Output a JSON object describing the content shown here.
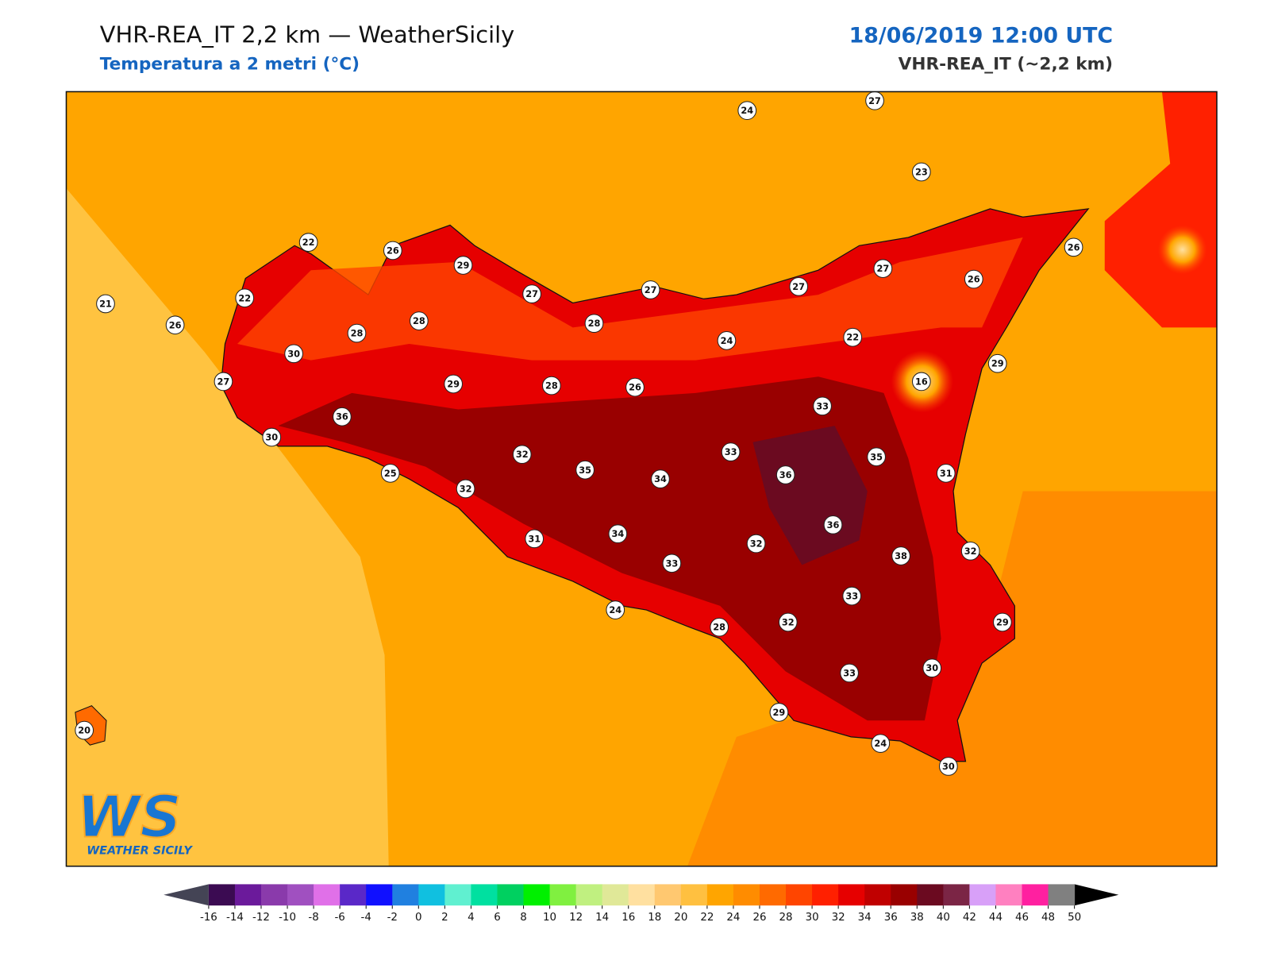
{
  "header": {
    "title": "VHR-REA_IT 2,2 km — WeatherSicily",
    "subtitle": "Temperatura a 2 metri (°C)",
    "date": "18/06/2019 12:00 UTC",
    "model": "VHR-REA_IT (~2,2 km)"
  },
  "map": {
    "stations": [
      24,
      27,
      23,
      22,
      26,
      29,
      22,
      21,
      26,
      28,
      28,
      27,
      27,
      28,
      27,
      27,
      26,
      26,
      24,
      22,
      30,
      27,
      29,
      28,
      26,
      16,
      29,
      36,
      30,
      33,
      32,
      33,
      35,
      25,
      35,
      34,
      36,
      31,
      32,
      36,
      31,
      34,
      32,
      33,
      38,
      32,
      33,
      24,
      32,
      28,
      29,
      30,
      33,
      29,
      24,
      30,
      20
    ]
  },
  "colorbar": {
    "ticks": [
      -16,
      -14,
      -12,
      -10,
      -8,
      -6,
      -4,
      -2,
      0,
      2,
      4,
      6,
      8,
      10,
      12,
      14,
      16,
      18,
      20,
      22,
      24,
      26,
      28,
      30,
      32,
      34,
      36,
      38,
      40,
      42,
      44,
      46,
      48,
      50
    ],
    "colors": [
      "#3b0b52",
      "#6b1a9b",
      "#8a3aab",
      "#a050c0",
      "#e070e8",
      "#5a28c8",
      "#1010ff",
      "#2080e0",
      "#10c0e0",
      "#60f0d0",
      "#00e0a0",
      "#00d060",
      "#00f000",
      "#80f040",
      "#c0f080",
      "#e0e898",
      "#ffe0a0",
      "#ffc870",
      "#ffc040",
      "#ffa500",
      "#ff8c00",
      "#ff6a00",
      "#ff4500",
      "#ff2000",
      "#e60000",
      "#c00000",
      "#990000",
      "#6b0a20",
      "#7b2545",
      "#d8a0f8",
      "#ff80c0",
      "#ff20a0",
      "#808080",
      "#404040"
    ]
  },
  "logo": {
    "mark": "WS",
    "text": "WEATHER SICILY"
  }
}
